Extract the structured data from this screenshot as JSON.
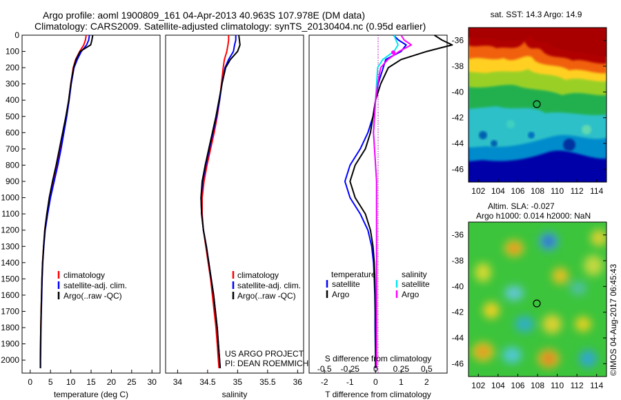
{
  "header": {
    "line1": "Argo profile: aoml 1900809_161 04-Apr-2013 40.963S 107.978E (DM data)",
    "line2": "Climatology: CARS2009. Satellite-adjusted climatology: synTS_20130404.nc (0.95d earlier)"
  },
  "side_label": "©IMOS 04-Aug-2017 06:45:43",
  "colors": {
    "climatology": "#ff0000",
    "satellite": "#0000ff",
    "argo": "#000000",
    "argo_s": "#ff00ff",
    "sat_s": "#00e5ee"
  },
  "chart_data": [
    {
      "type": "line",
      "xlabel": "temperature (deg C)",
      "xlim": [
        -2,
        32
      ],
      "ylim": [
        0,
        2080
      ],
      "xticks": [
        "0",
        "5",
        "10",
        "15",
        "20",
        "25",
        "30"
      ],
      "yticks": [
        "0",
        "100",
        "200",
        "300",
        "400",
        "500",
        "600",
        "700",
        "800",
        "900",
        "1000",
        "1100",
        "1200",
        "1300",
        "1400",
        "1500",
        "1600",
        "1700",
        "1800",
        "1900",
        "2000"
      ],
      "depth": [
        0,
        30,
        60,
        100,
        150,
        200,
        300,
        400,
        500,
        600,
        700,
        800,
        900,
        1000,
        1100,
        1200,
        1300,
        1400,
        1500,
        1600,
        1700,
        1800,
        1900,
        2000,
        2050
      ],
      "series": [
        {
          "name": "climatology",
          "color": "#ff0000",
          "values": [
            13.8,
            13.6,
            13.2,
            12.2,
            11.2,
            10.6,
            10.0,
            9.5,
            8.9,
            8.1,
            7.3,
            6.5,
            5.6,
            4.8,
            4.1,
            3.6,
            3.3,
            3.05,
            2.9,
            2.8,
            2.7,
            2.6,
            2.55,
            2.5,
            2.5
          ]
        },
        {
          "name": "satellite-adj. clim.",
          "color": "#0000ff",
          "values": [
            14.6,
            14.4,
            13.9,
            12.6,
            11.6,
            10.8,
            10.1,
            9.6,
            9.0,
            8.3,
            7.6,
            6.8,
            5.9,
            5.0,
            4.3,
            3.7,
            3.35,
            3.1,
            2.95,
            2.85,
            2.75,
            2.65,
            2.6,
            2.55,
            2.55
          ]
        },
        {
          "name": "Argo(..raw -QC)",
          "color": "#000000",
          "values": [
            15.4,
            15.2,
            14.9,
            12.3,
            11.3,
            10.7,
            10.0,
            9.5,
            8.8,
            8.0,
            7.2,
            6.4,
            5.5,
            4.7,
            4.1,
            3.6,
            3.3,
            3.05,
            2.9,
            2.8,
            2.7,
            2.6,
            2.55,
            2.5,
            2.5
          ]
        }
      ],
      "legend": [
        "climatology",
        "satellite-adj. clim.",
        "Argo(..raw -QC)"
      ]
    },
    {
      "type": "line",
      "xlabel": "salinity",
      "xlim": [
        33.8,
        36.1
      ],
      "ylim": [
        0,
        2080
      ],
      "xticks": [
        "34",
        "34.5",
        "35",
        "35.5",
        "36"
      ],
      "depth": [
        0,
        30,
        60,
        100,
        150,
        200,
        300,
        400,
        500,
        600,
        700,
        800,
        900,
        1000,
        1100,
        1200,
        1300,
        1400,
        1500,
        1600,
        1700,
        1800,
        1900,
        2000,
        2050
      ],
      "series": [
        {
          "name": "climatology",
          "color": "#ff0000",
          "values": [
            34.85,
            34.85,
            34.84,
            34.82,
            34.78,
            34.76,
            34.73,
            34.7,
            34.66,
            34.61,
            34.55,
            34.49,
            34.44,
            34.41,
            34.41,
            34.43,
            34.47,
            34.51,
            34.55,
            34.58,
            34.61,
            34.64,
            34.66,
            34.68,
            34.69
          ]
        },
        {
          "name": "satellite-adj. clim.",
          "color": "#0000ff",
          "values": [
            34.97,
            34.97,
            34.95,
            34.93,
            34.85,
            34.79,
            34.74,
            34.7,
            34.65,
            34.59,
            34.53,
            34.47,
            34.42,
            34.39,
            34.4,
            34.43,
            34.48,
            34.52,
            34.56,
            34.6,
            34.63,
            34.66,
            34.68,
            34.7,
            34.71
          ]
        },
        {
          "name": "Argo(..raw -QC)",
          "color": "#000000",
          "values": [
            35.02,
            35.03,
            35.04,
            35.0,
            34.88,
            34.8,
            34.74,
            34.69,
            34.64,
            34.58,
            34.52,
            34.46,
            34.41,
            34.39,
            34.4,
            34.43,
            34.48,
            34.52,
            34.56,
            34.6,
            34.63,
            34.66,
            34.68,
            34.7,
            34.71
          ]
        }
      ],
      "legend": [
        "climatology",
        "satellite-adj. clim.",
        "Argo(..raw -QC)"
      ],
      "credit": [
        "US ARGO PROJECT",
        "PI: DEAN ROEMMICH"
      ]
    },
    {
      "type": "line",
      "xlabel": "T difference from climatology",
      "xlabel_top": "S difference from climatology",
      "xlim": [
        -2.6,
        2.8
      ],
      "ylim": [
        0,
        2080
      ],
      "xticks": [
        "-2",
        "-1",
        "0",
        "1",
        "2"
      ],
      "xticks_top": [
        "-0.5",
        "-0.25",
        "0",
        "0.25",
        "0.5"
      ],
      "depth": [
        0,
        30,
        60,
        100,
        150,
        200,
        300,
        400,
        500,
        600,
        700,
        800,
        900,
        1000,
        1100,
        1200,
        1300,
        1400,
        1500,
        1600,
        1700,
        1800,
        1900,
        2000,
        2050
      ],
      "series": [
        {
          "name": "temperature satellite",
          "color": "#0000ff",
          "values": [
            0.7,
            0.9,
            1.2,
            1.0,
            0.4,
            0.3,
            0.1,
            0.0,
            -0.1,
            -0.3,
            -0.6,
            -1.0,
            -1.2,
            -1.0,
            -0.6,
            -0.3,
            -0.15,
            -0.08,
            -0.05,
            -0.03,
            -0.02,
            -0.02,
            -0.01,
            0.0,
            0.0
          ]
        },
        {
          "name": "temperature Argo",
          "color": "#000000",
          "values": [
            2.3,
            2.6,
            3.0,
            2.0,
            1.0,
            0.5,
            0.2,
            0.0,
            -0.1,
            -0.2,
            -0.4,
            -0.8,
            -1.0,
            -0.8,
            -0.4,
            -0.2,
            -0.1,
            -0.05,
            -0.03,
            -0.02,
            -0.01,
            0.0,
            0.0,
            0.0,
            0.0
          ]
        },
        {
          "name": "salinity satellite",
          "color": "#00e5ee",
          "values": [
            0.18,
            0.2,
            0.22,
            0.18,
            0.07,
            0.02,
            0.01,
            0.0,
            -0.01,
            -0.02,
            -0.01,
            0.0,
            0.01,
            0.01,
            0.01,
            0.01,
            0.01,
            0.01,
            0.01,
            0.01,
            0.01,
            0.01,
            0.01,
            0.01,
            0.01
          ]
        },
        {
          "name": "salinity Argo",
          "color": "#ff00ff",
          "values": [
            0.25,
            0.28,
            0.35,
            0.23,
            0.12,
            0.05,
            0.02,
            0.0,
            -0.01,
            -0.02,
            -0.01,
            0.0,
            0.01,
            0.01,
            0.01,
            0.01,
            0.01,
            0.01,
            0.01,
            0.01,
            0.01,
            0.01,
            0.01,
            0.01,
            0.01
          ]
        }
      ],
      "legend": {
        "temperature_heading": "temperature",
        "salinity_heading": "salinity",
        "satellite": "satellite",
        "argo": "Argo"
      }
    },
    {
      "type": "heatmap",
      "title": "sat. SST: 14.3 Argo: 14.9",
      "xlim": [
        101,
        115
      ],
      "ylim": [
        -47,
        -35
      ],
      "xticks": [
        "102",
        "104",
        "106",
        "108",
        "110",
        "112",
        "114"
      ],
      "yticks": [
        "-36",
        "-38",
        "-40",
        "-42",
        "-44",
        "-46"
      ],
      "marker": {
        "lon": 107.978,
        "lat": -40.963
      },
      "field": "sea surface temperature: warm north (dark red), cooling southward to dark blue"
    },
    {
      "type": "heatmap",
      "title": [
        "Altim. SLA: -0.027",
        "Argo h1000: 0.014 h2000: NaN"
      ],
      "xlim": [
        101,
        115
      ],
      "ylim": [
        -47,
        -35
      ],
      "xticks": [
        "102",
        "104",
        "106",
        "108",
        "110",
        "112",
        "114"
      ],
      "yticks": [
        "-36",
        "-38",
        "-40",
        "-42",
        "-44",
        "-46"
      ],
      "marker": {
        "lon": 107.978,
        "lat": -40.963
      },
      "field": "sea level anomaly: mostly green with yellow/orange highs and blue/cyan lows"
    }
  ]
}
